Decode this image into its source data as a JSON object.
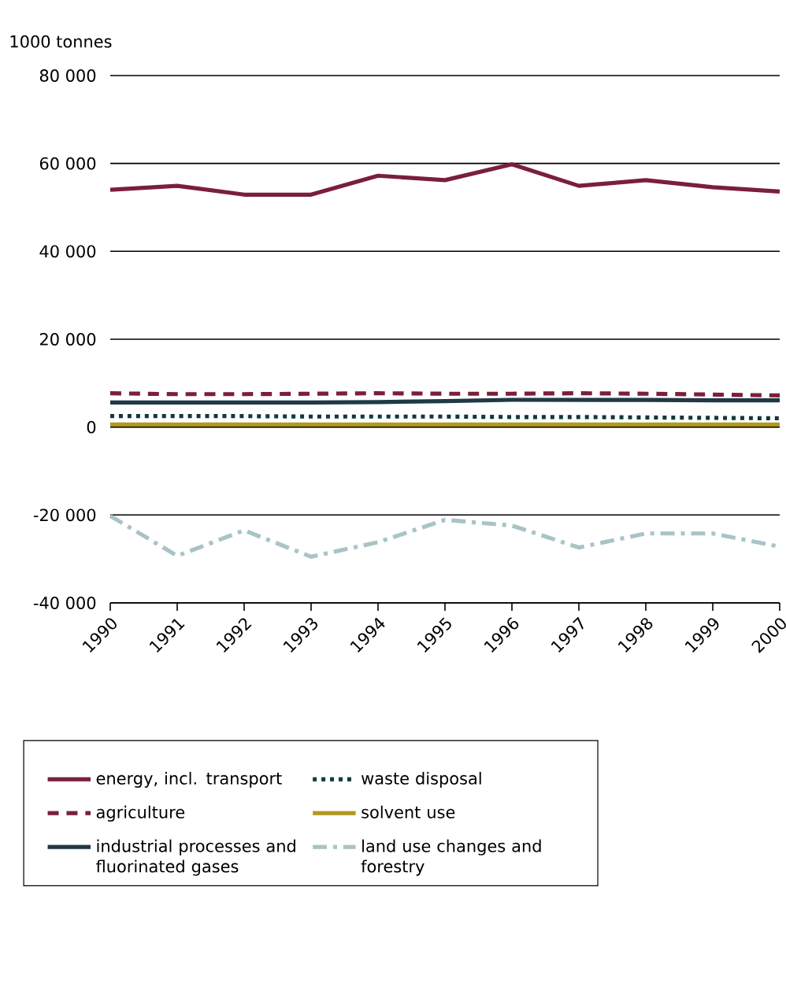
{
  "chart_data": {
    "type": "line",
    "ylabel": "1000 tonnes",
    "x": [
      1990,
      1991,
      1992,
      1993,
      1994,
      1995,
      1996,
      1997,
      1998,
      1999,
      2000
    ],
    "xlim": [
      1990,
      2000
    ],
    "xticks": [
      1990,
      1991,
      1992,
      1993,
      1994,
      1995,
      1996,
      1997,
      1998,
      1999,
      2000
    ],
    "ylim": [
      -40000,
      80000
    ],
    "yticks": [
      {
        "value": 80000,
        "label": "80 000"
      },
      {
        "value": 60000,
        "label": "60 000"
      },
      {
        "value": 40000,
        "label": "40 000"
      },
      {
        "value": 20000,
        "label": "20 000"
      },
      0,
      {
        "value": -20000,
        "label": "-20 000"
      },
      {
        "value": -40000,
        "label": "-40 000"
      }
    ],
    "grid": "y",
    "legend": "bottom",
    "series": [
      {
        "name": "energy, incl. transport",
        "color": "#7a1f3a",
        "line_style": "solid",
        "values": [
          54000,
          54900,
          52900,
          52900,
          57200,
          56200,
          59800,
          54900,
          56200,
          54600,
          53600
        ]
      },
      {
        "name": "agriculture",
        "color": "#7a1f3a",
        "line_style": "dashed",
        "values": [
          7700,
          7500,
          7500,
          7600,
          7700,
          7600,
          7600,
          7700,
          7600,
          7400,
          7200
        ]
      },
      {
        "name": "industrial processes and fluorinated gases",
        "color": "#1f3a46",
        "line_style": "solid",
        "values": [
          5600,
          5600,
          5600,
          5600,
          5700,
          5900,
          6200,
          6200,
          6200,
          6100,
          6100
        ]
      },
      {
        "name": "waste disposal",
        "color": "#12383a",
        "line_style": "dotted",
        "values": [
          2500,
          2500,
          2500,
          2400,
          2400,
          2400,
          2300,
          2300,
          2200,
          2100,
          2000
        ]
      },
      {
        "name": "solvent use",
        "color": "#b09a1e",
        "line_style": "solid",
        "values": [
          600,
          600,
          600,
          600,
          600,
          600,
          600,
          600,
          600,
          600,
          600
        ]
      },
      {
        "name": "land use changes and forestry",
        "color": "#a9c3c6",
        "line_style": "dashdot",
        "values": [
          -20200,
          -29300,
          -23500,
          -29500,
          -26200,
          -21100,
          -22400,
          -27400,
          -24200,
          -24200,
          -27200
        ]
      }
    ]
  }
}
